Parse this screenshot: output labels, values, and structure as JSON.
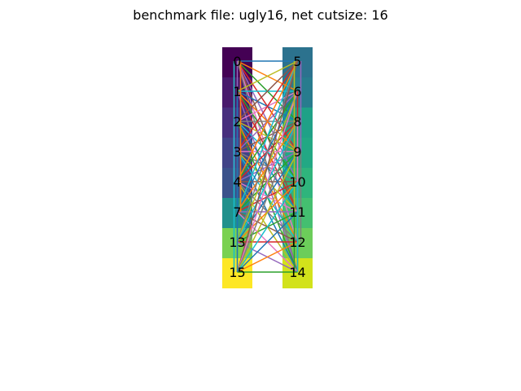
{
  "figure": {
    "title": "benchmark file: ugly16, net cutsize: 16"
  },
  "diagram": {
    "type": "bipartite-partition",
    "left_partition": [
      {
        "label": "0",
        "color": "#440154"
      },
      {
        "label": "1",
        "color": "#481a6c"
      },
      {
        "label": "2",
        "color": "#472f7d"
      },
      {
        "label": "3",
        "color": "#414487"
      },
      {
        "label": "4",
        "color": "#3b528b"
      },
      {
        "label": "7",
        "color": "#21918c"
      },
      {
        "label": "13",
        "color": "#7ad151"
      },
      {
        "label": "15",
        "color": "#fde725"
      }
    ],
    "right_partition": [
      {
        "label": "5",
        "color": "#2c728e"
      },
      {
        "label": "6",
        "color": "#287c8e"
      },
      {
        "label": "8",
        "color": "#1fa187"
      },
      {
        "label": "9",
        "color": "#22a884"
      },
      {
        "label": "10",
        "color": "#2fb47c"
      },
      {
        "label": "11",
        "color": "#44bf70"
      },
      {
        "label": "12",
        "color": "#6ccd5a"
      },
      {
        "label": "14",
        "color": "#d2e21b"
      }
    ],
    "edge_colors": [
      "#1f77b4",
      "#ff7f0e",
      "#2ca02c",
      "#d62728",
      "#9467bd",
      "#8c564b",
      "#e377c2",
      "#7f7f7f",
      "#bcbd22",
      "#17becf"
    ],
    "edges": [
      [
        "0",
        "5"
      ],
      [
        "0",
        "6"
      ],
      [
        "0",
        "8"
      ],
      [
        "0",
        "9"
      ],
      [
        "0",
        "10"
      ],
      [
        "0",
        "11"
      ],
      [
        "0",
        "12"
      ],
      [
        "0",
        "14"
      ],
      [
        "1",
        "5"
      ],
      [
        "1",
        "6"
      ],
      [
        "1",
        "8"
      ],
      [
        "1",
        "9"
      ],
      [
        "1",
        "10"
      ],
      [
        "1",
        "11"
      ],
      [
        "1",
        "14"
      ],
      [
        "2",
        "5"
      ],
      [
        "2",
        "6"
      ],
      [
        "2",
        "8"
      ],
      [
        "2",
        "9"
      ],
      [
        "2",
        "10"
      ],
      [
        "2",
        "11"
      ],
      [
        "2",
        "12"
      ],
      [
        "2",
        "14"
      ],
      [
        "3",
        "5"
      ],
      [
        "3",
        "6"
      ],
      [
        "3",
        "8"
      ],
      [
        "3",
        "9"
      ],
      [
        "3",
        "10"
      ],
      [
        "3",
        "11"
      ],
      [
        "3",
        "12"
      ],
      [
        "3",
        "14"
      ],
      [
        "4",
        "5"
      ],
      [
        "4",
        "6"
      ],
      [
        "4",
        "8"
      ],
      [
        "4",
        "9"
      ],
      [
        "4",
        "10"
      ],
      [
        "4",
        "11"
      ],
      [
        "4",
        "12"
      ],
      [
        "4",
        "14"
      ],
      [
        "7",
        "5"
      ],
      [
        "7",
        "6"
      ],
      [
        "7",
        "8"
      ],
      [
        "7",
        "9"
      ],
      [
        "7",
        "10"
      ],
      [
        "7",
        "11"
      ],
      [
        "7",
        "12"
      ],
      [
        "7",
        "14"
      ],
      [
        "13",
        "5"
      ],
      [
        "13",
        "6"
      ],
      [
        "13",
        "8"
      ],
      [
        "13",
        "9"
      ],
      [
        "13",
        "10"
      ],
      [
        "13",
        "11"
      ],
      [
        "13",
        "12"
      ],
      [
        "13",
        "14"
      ],
      [
        "15",
        "5"
      ],
      [
        "15",
        "6"
      ],
      [
        "15",
        "8"
      ],
      [
        "15",
        "9"
      ],
      [
        "15",
        "10"
      ],
      [
        "15",
        "11"
      ],
      [
        "15",
        "12"
      ],
      [
        "15",
        "14"
      ],
      [
        "0",
        "2"
      ],
      [
        "0",
        "3"
      ],
      [
        "1",
        "2"
      ],
      [
        "2",
        "4"
      ],
      [
        "3",
        "4"
      ],
      [
        "4",
        "7"
      ],
      [
        "0",
        "15"
      ],
      [
        "1",
        "15"
      ],
      [
        "0",
        "7"
      ],
      [
        "5",
        "14"
      ],
      [
        "6",
        "14"
      ],
      [
        "5",
        "9"
      ],
      [
        "6",
        "9"
      ],
      [
        "8",
        "11"
      ],
      [
        "9",
        "12"
      ],
      [
        "5",
        "11"
      ],
      [
        "10",
        "14"
      ]
    ]
  }
}
